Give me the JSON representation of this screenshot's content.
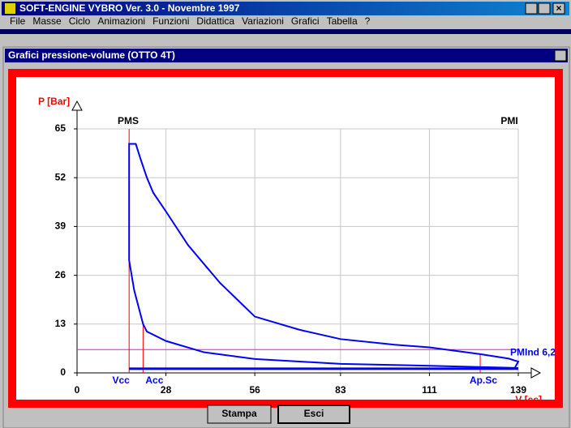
{
  "window_title": "SOFT-ENGINE   VYBRO Ver. 3.0 - Novembre 1997",
  "menu": [
    "File",
    "Masse",
    "Ciclo",
    "Animazioni",
    "Funzioni",
    "Didattica",
    "Variazioni",
    "Grafici",
    "Tabella",
    "?"
  ],
  "dialog_title": "Grafici pressione-volume (OTTO 4T)",
  "buttons": [
    "Stampa",
    "Esci"
  ],
  "chart_data": {
    "type": "line",
    "y_label": "P [Bar]",
    "x_label": "V [cc]",
    "top_labels": [
      "PMS",
      "PMI"
    ],
    "xlim": [
      0,
      139
    ],
    "ylim": [
      0,
      65
    ],
    "xticks": [
      0,
      28,
      56,
      83,
      111,
      139
    ],
    "yticks": [
      0,
      13,
      26,
      39,
      52,
      65
    ],
    "grid": true,
    "series": [
      {
        "color": "#0000ff",
        "x": [
          139,
          111,
          83,
          56,
          40,
          28,
          22,
          20.8,
          18,
          16.4,
          16.4,
          18.5,
          20,
          22,
          24,
          28,
          35,
          45,
          56,
          70,
          83,
          100,
          111,
          127,
          136,
          139,
          138
        ],
        "values": [
          1.3,
          1.9,
          2.4,
          3.7,
          5.5,
          8.5,
          11,
          13,
          22,
          30,
          61,
          61,
          57,
          52,
          48,
          43,
          34,
          24,
          15,
          11.5,
          9,
          7.5,
          6.8,
          5,
          3.8,
          3,
          1.5
        ]
      },
      {
        "color": "#0000ff",
        "x": [
          16.4,
          139
        ],
        "values": [
          1.1,
          1.1
        ]
      }
    ],
    "markers": [
      {
        "label": "Vcc",
        "x": 16.4,
        "top": 65
      },
      {
        "label": "Acc",
        "x": 20.8,
        "top": 13
      },
      {
        "label": "Ap.Sc",
        "x": 127,
        "top": 5
      }
    ],
    "marker_color": "#ff0000",
    "pmind": {
      "label": "PMInd 6,2",
      "value": 6.2,
      "color": "#ff00ff"
    }
  }
}
